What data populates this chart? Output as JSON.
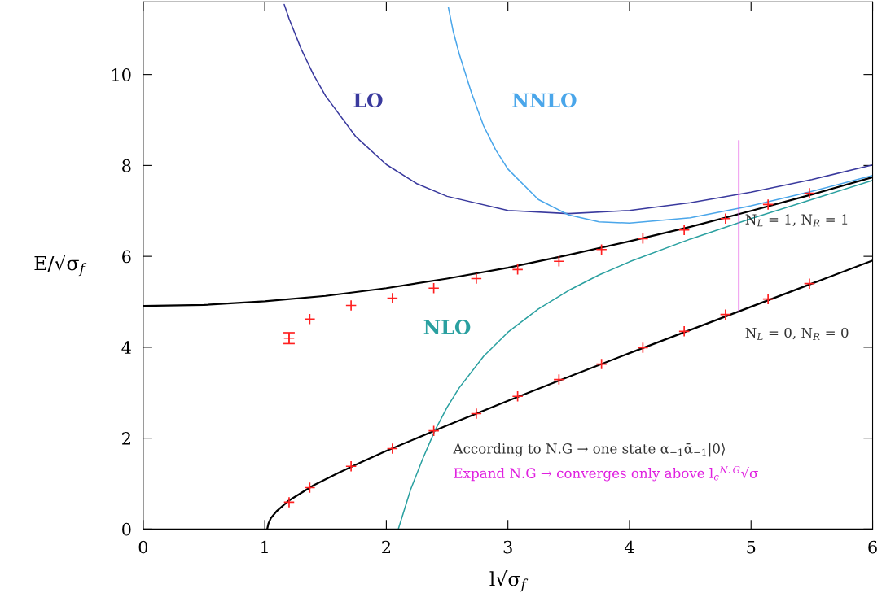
{
  "chart_data": {
    "type": "line",
    "xlabel": "l√σ$_{f}$",
    "ylabel": "E/√σ$_{f}$",
    "xlim": [
      0,
      6
    ],
    "ylim": [
      0,
      11.6
    ],
    "xticks": [
      0,
      1,
      2,
      3,
      4,
      5,
      6
    ],
    "yticks": [
      0,
      2,
      4,
      6,
      8,
      10
    ],
    "grid": false,
    "marker": "none",
    "line_style": "solid",
    "series": [
      {
        "color": "#000000",
        "x": [
          0,
          0.5,
          1,
          1.5,
          2,
          2.5,
          3,
          3.5,
          4,
          4.5,
          5,
          5.5,
          6
        ],
        "values": [
          4.91,
          4.93,
          5.01,
          5.13,
          5.3,
          5.51,
          5.75,
          6.03,
          6.33,
          6.65,
          7.0,
          7.36,
          7.74
        ]
      },
      {
        "color": "#000000",
        "x": [
          1.02,
          1.03,
          1.05,
          1.1,
          1.2,
          1.4,
          1.6,
          1.8,
          2,
          2.5,
          3,
          3.5,
          4,
          4.5,
          5,
          5.5,
          6
        ],
        "values": [
          0,
          0.12,
          0.24,
          0.4,
          0.63,
          0.96,
          1.23,
          1.48,
          1.72,
          2.28,
          2.82,
          3.35,
          3.87,
          4.38,
          4.89,
          5.4,
          5.91
        ]
      },
      {
        "name": "LO",
        "color": "#3a3a9e",
        "x": [
          1.16,
          1.2,
          1.3,
          1.4,
          1.5,
          1.75,
          2,
          2.25,
          2.5,
          3,
          3.5,
          4,
          4.5,
          5,
          5.5,
          6
        ],
        "values": [
          11.54,
          11.23,
          10.56,
          10.0,
          9.53,
          8.63,
          8.02,
          7.6,
          7.32,
          7.01,
          6.94,
          7.01,
          7.18,
          7.41,
          7.69,
          8.01
        ]
      },
      {
        "name": "NLO",
        "color": "#2aa0a0",
        "x": [
          2.1,
          2.2,
          2.3,
          2.4,
          2.5,
          2.6,
          2.8,
          3,
          3.25,
          3.5,
          3.75,
          4,
          4.5,
          5,
          5.5,
          6
        ],
        "values": [
          0.01,
          0.87,
          1.55,
          2.17,
          2.68,
          3.11,
          3.8,
          4.33,
          4.84,
          5.25,
          5.59,
          5.88,
          6.38,
          6.83,
          7.25,
          7.67
        ]
      },
      {
        "name": "NNLO",
        "color": "#4aa6ea",
        "x": [
          2.51,
          2.55,
          2.6,
          2.7,
          2.8,
          2.9,
          3,
          3.25,
          3.5,
          3.75,
          4,
          4.5,
          5,
          5.5,
          6
        ],
        "values": [
          11.48,
          10.95,
          10.45,
          9.6,
          8.87,
          8.34,
          7.92,
          7.25,
          6.91,
          6.76,
          6.73,
          6.85,
          7.11,
          7.43,
          7.78
        ]
      },
      {
        "color": "#e040e0",
        "x": [
          4.9,
          4.9
        ],
        "values": [
          4.8,
          8.55
        ]
      },
      {
        "type": "scatter",
        "marker": "cross",
        "color": "#ff2020",
        "x": [
          1.2,
          1.37,
          1.71,
          2.05,
          2.39,
          2.74,
          3.08,
          3.42,
          3.77,
          4.11,
          4.45,
          4.79,
          5.14,
          5.48
        ],
        "values": [
          0.59,
          0.91,
          1.38,
          1.77,
          2.16,
          2.54,
          2.92,
          3.29,
          3.63,
          3.99,
          4.35,
          4.72,
          5.06,
          5.4
        ]
      },
      {
        "type": "scatter",
        "marker": "cross",
        "color": "#ff2020",
        "x": [
          1.2,
          1.37,
          1.71,
          2.05,
          2.39,
          2.74,
          3.08,
          3.42,
          3.77,
          4.11,
          4.45,
          4.79,
          5.14,
          5.48
        ],
        "values": [
          4.2,
          4.62,
          4.92,
          5.08,
          5.3,
          5.51,
          5.71,
          5.89,
          6.15,
          6.39,
          6.58,
          6.83,
          7.14,
          7.39
        ],
        "errors": [
          0.12,
          null,
          null,
          null,
          null,
          null,
          null,
          null,
          null,
          null,
          null,
          null,
          null,
          null
        ]
      }
    ],
    "annotations": [
      "N$_{L}$ = 1, N$_{R}$ = 1",
      "N$_{L}$ = 0, N$_{R}$ = 0",
      "According to N.G → one state α$_{−1}$ᾱ$_{−1}$|0⟩",
      "Expand N.G → converges only above l$_{c}$$^{N.G}$√σ"
    ]
  }
}
